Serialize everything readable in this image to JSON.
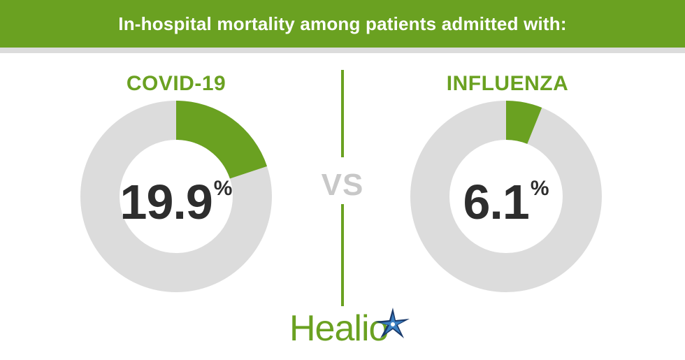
{
  "header": {
    "title": "In-hospital mortality among patients admitted with:"
  },
  "divider_text": "VS",
  "logo": {
    "text": "Healio",
    "icon": "star-compass-icon"
  },
  "colors": {
    "accent_green": "#6aa121",
    "ring_gray": "#dcdcdc",
    "value_text": "#2d2d2d",
    "vs_gray": "#c8c8c8",
    "logo_navy": "#1a3a6b",
    "logo_blue": "#3a7fc2"
  },
  "chart_data": [
    {
      "type": "pie",
      "title": "COVID-19",
      "value": 19.9,
      "unit": "%",
      "value_text": "19.9",
      "unit_text": "%",
      "max": 100
    },
    {
      "type": "pie",
      "title": "INFLUENZA",
      "value": 6.1,
      "unit": "%",
      "value_text": "6.1",
      "unit_text": "%",
      "max": 100
    }
  ]
}
